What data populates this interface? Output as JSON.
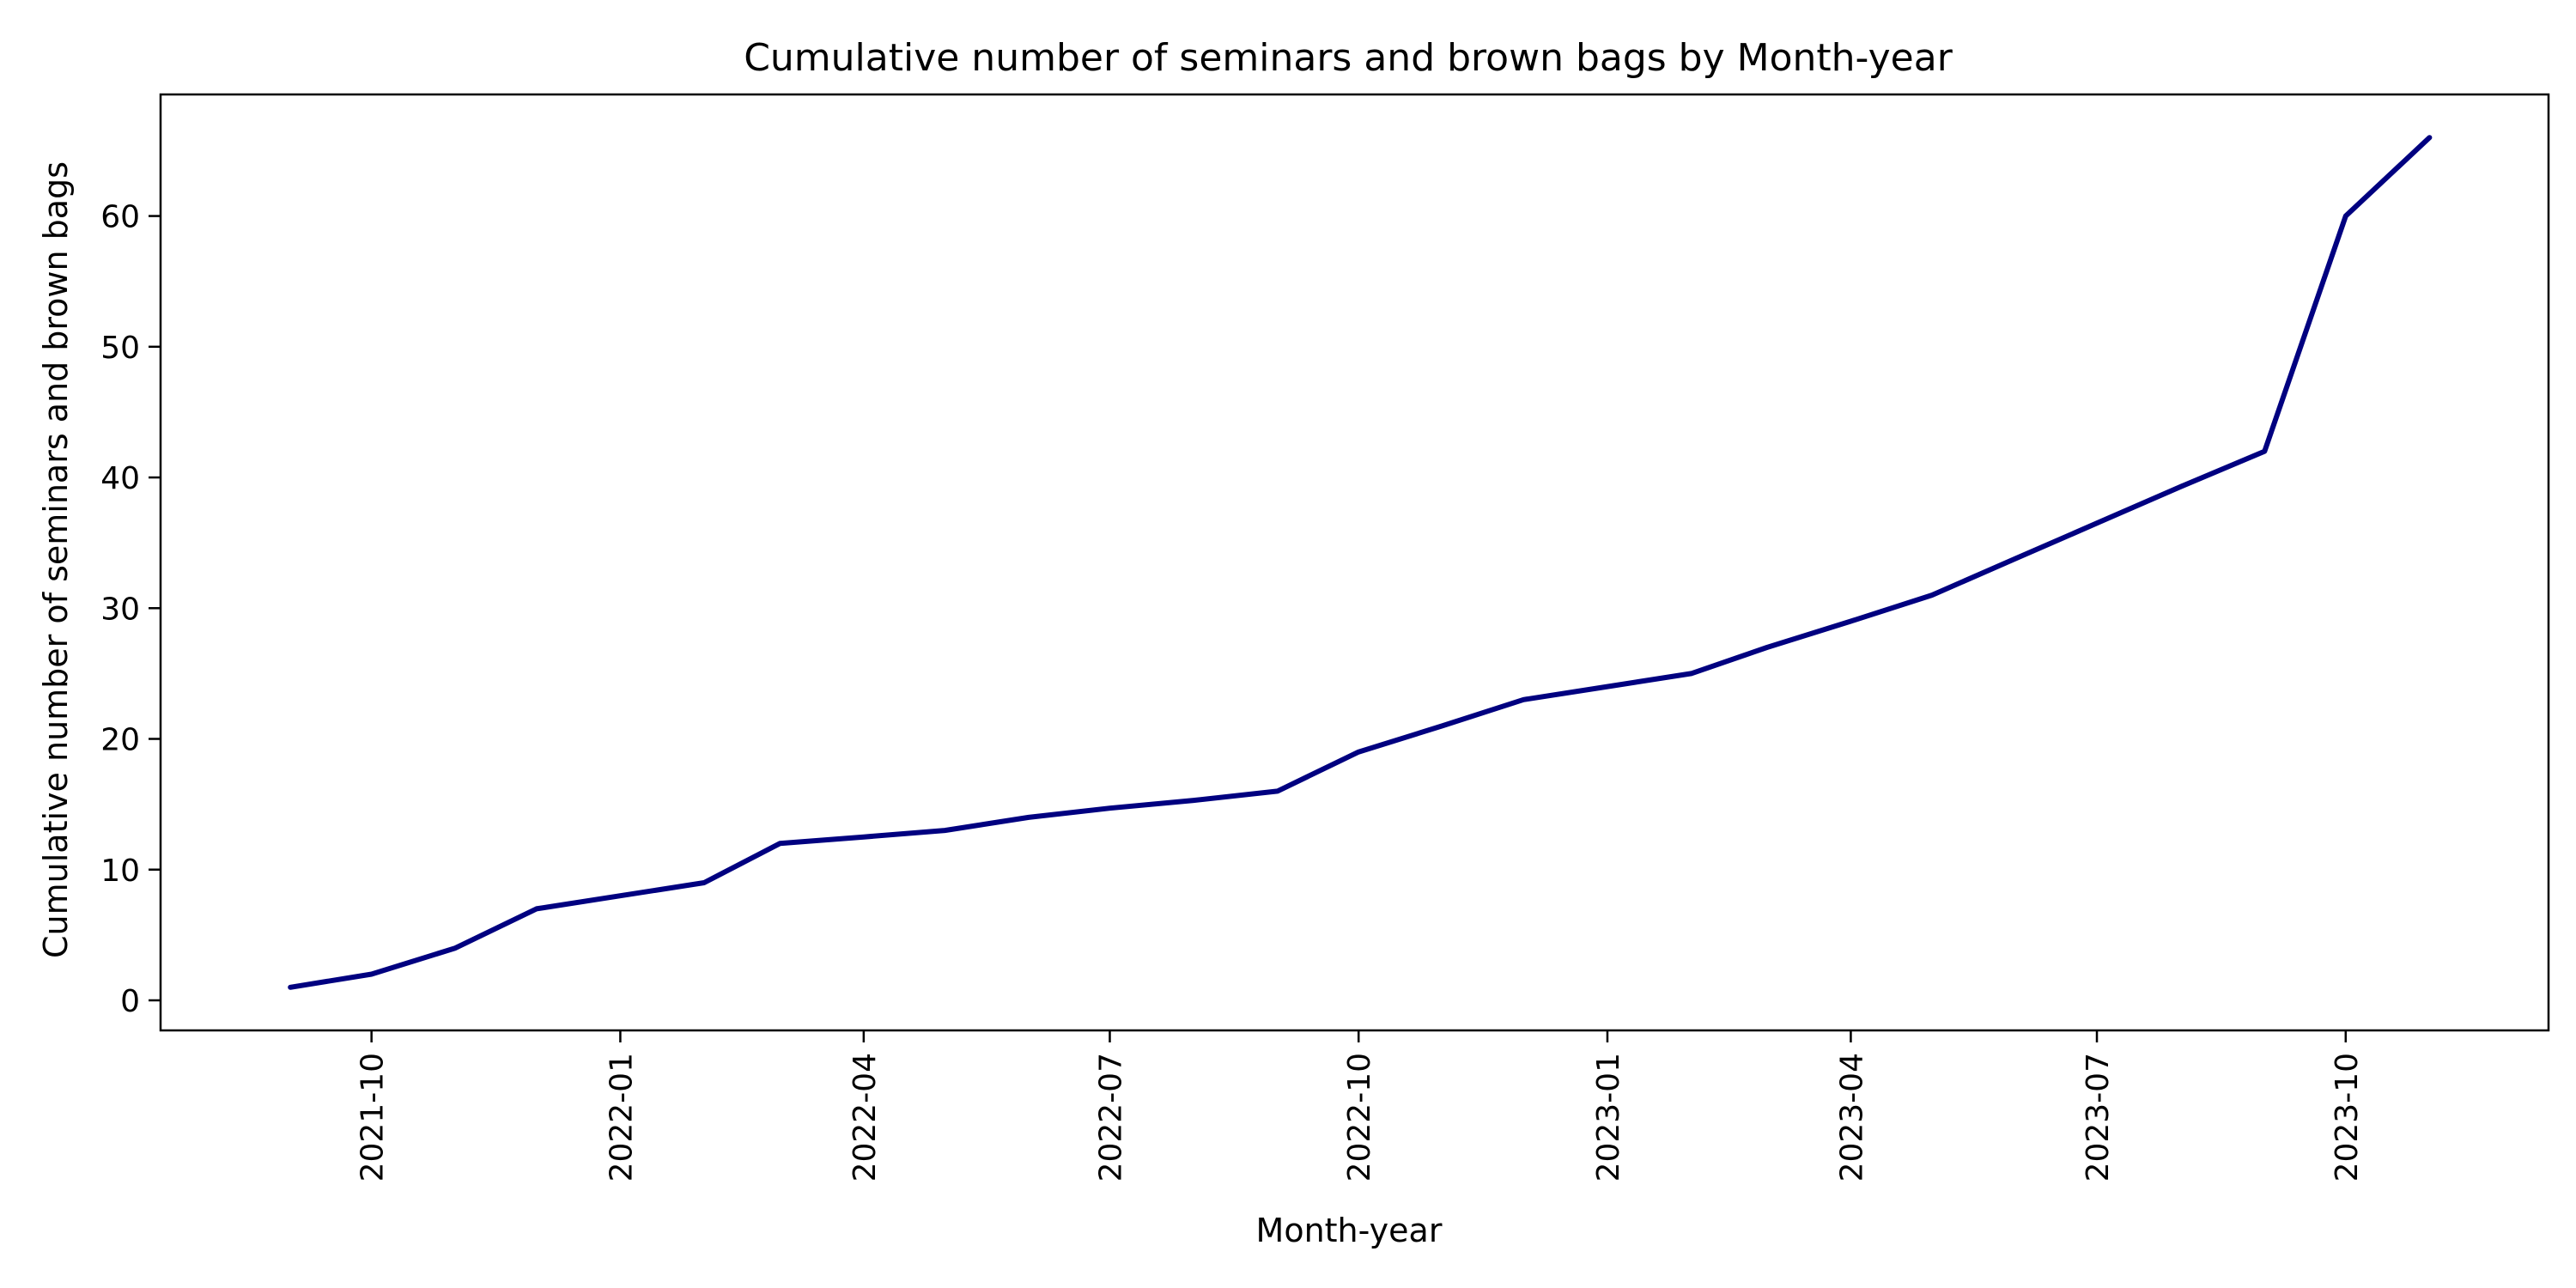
{
  "chart_data": {
    "type": "line",
    "title": "Cumulative number of seminars and brown bags by Month-year",
    "xlabel": "Month-year",
    "ylabel": "Cumulative number of seminars and brown bags",
    "x_tick_labels": [
      "2021-10",
      "2022-01",
      "2022-04",
      "2022-07",
      "2022-10",
      "2023-01",
      "2023-04",
      "2023-07",
      "2023-10"
    ],
    "y_tick_labels": [
      "0",
      "10",
      "20",
      "30",
      "40",
      "50",
      "60"
    ],
    "y_ticks": [
      0,
      10,
      20,
      30,
      40,
      50,
      60
    ],
    "x_range": [
      "2021-07-15",
      "2023-12-15"
    ],
    "ylim": [
      -2.3,
      69.3
    ],
    "grid": false,
    "line_color": "#000080",
    "series": [
      {
        "x": [
          "2021-09",
          "2021-10",
          "2021-11",
          "2021-12",
          "2022-01",
          "2022-02",
          "2022-03",
          "2022-04",
          "2022-05",
          "2022-06",
          "2022-07",
          "2022-08",
          "2022-09",
          "2022-10",
          "2022-11",
          "2022-12",
          "2023-01",
          "2023-02",
          "2023-03",
          "2023-04",
          "2023-05",
          "2023-06",
          "2023-07",
          "2023-08",
          "2023-09",
          "2023-10",
          "2023-11"
        ],
        "values": [
          1,
          2,
          4,
          7,
          8,
          9,
          12,
          12.5,
          13,
          14,
          14.7,
          15.3,
          16,
          19,
          21,
          23,
          24,
          25,
          27,
          29,
          31,
          33.8,
          36.5,
          39.3,
          42,
          60,
          66
        ]
      }
    ]
  }
}
